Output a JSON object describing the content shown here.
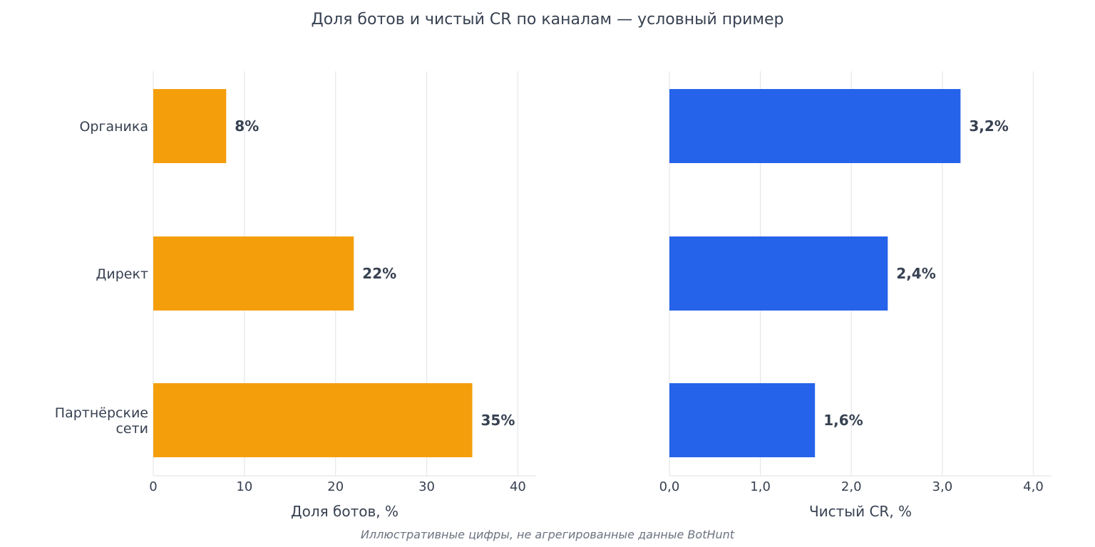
{
  "title": "Доля ботов и чистый CR по каналам — условный пример",
  "footnote": "Иллюстративные цифры, не агрегированные данные BotHunt",
  "chart_data": [
    {
      "type": "bar",
      "orientation": "horizontal",
      "categories": [
        "Органика",
        "Директ",
        "Партнёрские\nсети"
      ],
      "values": [
        8,
        22,
        35
      ],
      "value_labels": [
        "8%",
        "22%",
        "35%"
      ],
      "xlabel": "Доля ботов, %",
      "xlim": [
        0,
        42
      ],
      "xticks": [
        0,
        10,
        20,
        30,
        40
      ],
      "xtick_labels": [
        "0",
        "10",
        "20",
        "30",
        "40"
      ],
      "color": "#f59e0b",
      "grid": true
    },
    {
      "type": "bar",
      "orientation": "horizontal",
      "categories": [
        "Органика",
        "Директ",
        "Партнёрские\nсети"
      ],
      "values": [
        3.2,
        2.4,
        1.6
      ],
      "value_labels": [
        "3,2%",
        "2,4%",
        "1,6%"
      ],
      "xlabel": "Чистый CR, %",
      "xlim": [
        0,
        4.2
      ],
      "xticks": [
        0,
        1,
        2,
        3,
        4
      ],
      "xtick_labels": [
        "0,0",
        "1,0",
        "2,0",
        "3,0",
        "4,0"
      ],
      "color": "#2563eb",
      "grid": true
    }
  ]
}
